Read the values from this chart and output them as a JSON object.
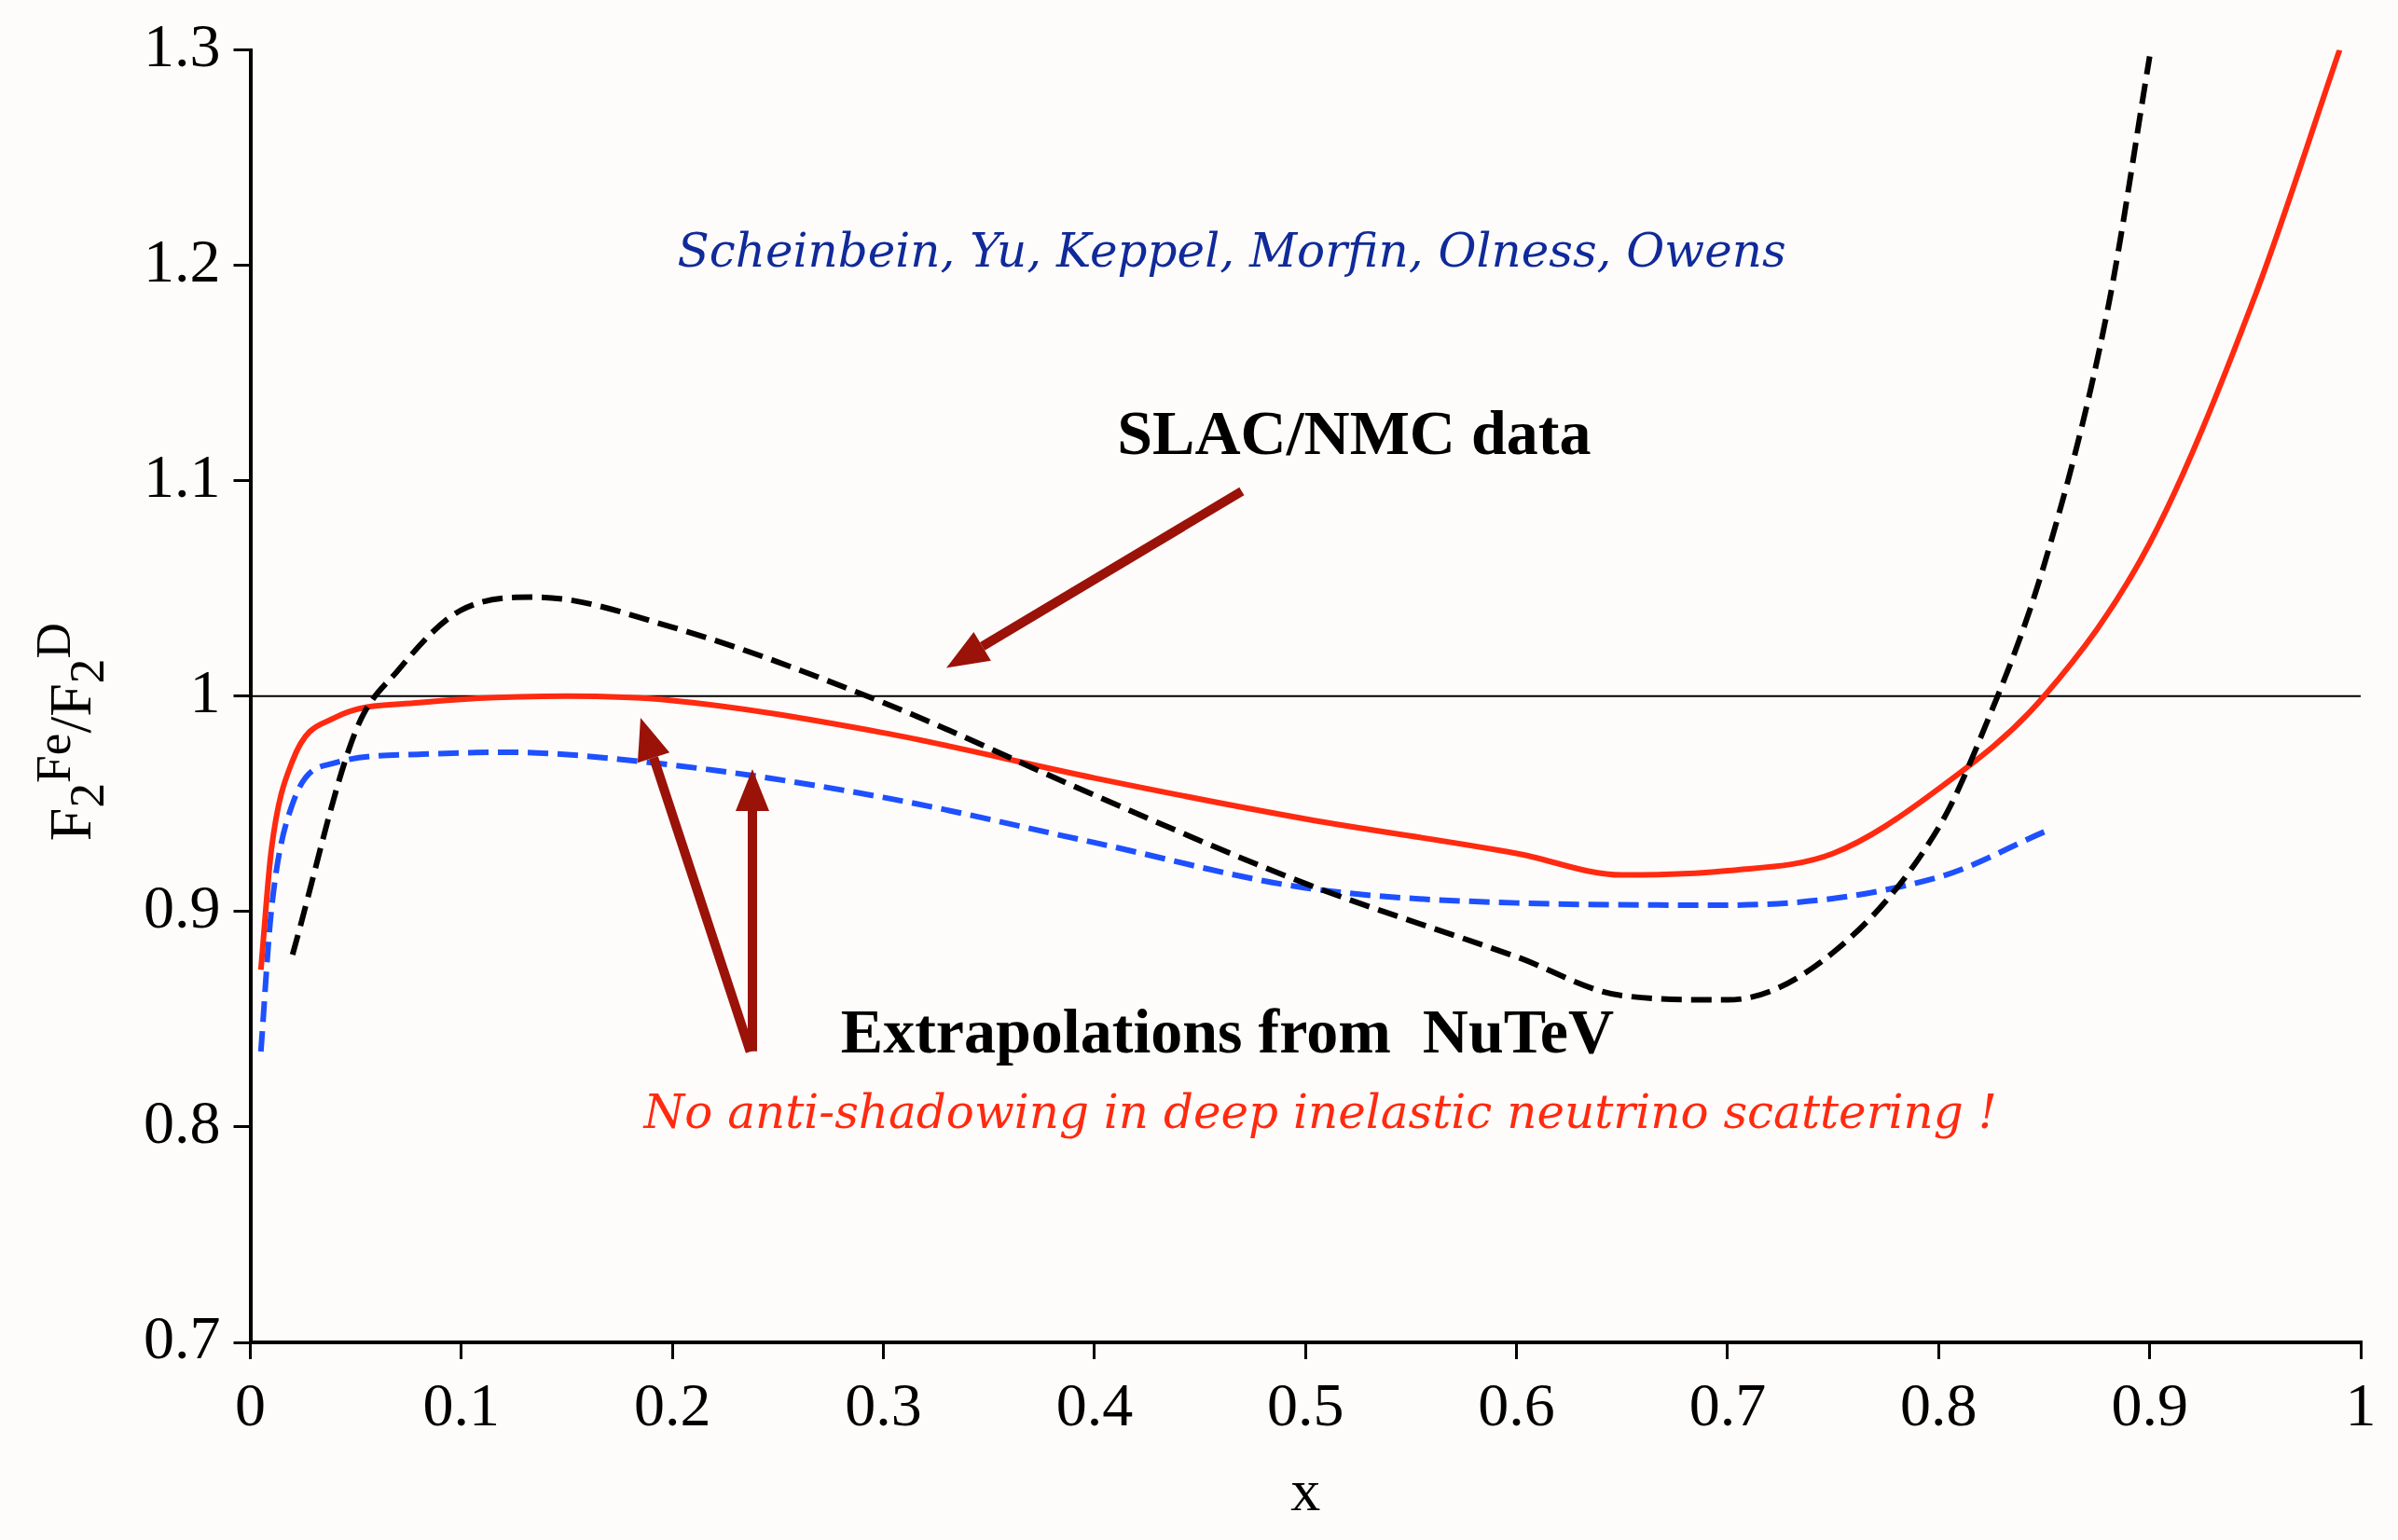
{
  "chart_data": {
    "type": "line",
    "xlabel": "x",
    "ylabel": "F$_{2}$$^{Fe}$/F$_{2}$$^{D}$",
    "xlim": [
      0,
      1
    ],
    "xticks": [
      0,
      0.1,
      0.2,
      0.3,
      0.4,
      0.5,
      0.6,
      0.7,
      0.8,
      0.9,
      1
    ],
    "ylim": [
      0.7,
      1.3
    ],
    "yticks": [
      0.7,
      0.8,
      0.9,
      1,
      1.1,
      1.2,
      1.3
    ],
    "grid": false,
    "legend": false,
    "marker": "none",
    "ref_lines": [
      {
        "axis": "y",
        "value": 1,
        "color": "#000000",
        "line_style": "solid"
      }
    ],
    "series": [
      {
        "color": "#000000",
        "line_style": "dashed",
        "x": [
          0.02,
          0.05,
          0.07,
          0.1,
          0.135,
          0.2,
          0.3,
          0.4,
          0.5,
          0.6,
          0.65,
          0.7,
          0.75,
          0.8,
          0.82,
          0.85,
          0.88,
          0.9
        ],
        "values": [
          0.88,
          0.984,
          1.012,
          1.04,
          1.046,
          1.032,
          0.997,
          0.954,
          0.913,
          0.879,
          0.861,
          0.859,
          0.881,
          0.939,
          0.981,
          1.061,
          1.179,
          1.297
        ]
      },
      {
        "color": "#ff2a10",
        "line_style": "solid",
        "x": [
          0.005,
          0.01,
          0.02,
          0.04,
          0.08,
          0.15,
          0.2,
          0.3,
          0.4,
          0.5,
          0.6,
          0.65,
          0.7,
          0.75,
          0.8,
          0.85,
          0.9,
          0.95,
          0.99
        ],
        "values": [
          0.873,
          0.929,
          0.97,
          0.99,
          0.997,
          1.0,
          0.998,
          0.983,
          0.962,
          0.943,
          0.927,
          0.917,
          0.919,
          0.927,
          0.957,
          1.0,
          1.071,
          1.186,
          1.3
        ]
      },
      {
        "color": "#1e50ff",
        "line_style": "dashed",
        "x": [
          0.005,
          0.01,
          0.02,
          0.04,
          0.08,
          0.12,
          0.2,
          0.3,
          0.4,
          0.5,
          0.6,
          0.7,
          0.8,
          0.85
        ],
        "values": [
          0.835,
          0.901,
          0.95,
          0.969,
          0.973,
          0.974,
          0.968,
          0.953,
          0.932,
          0.911,
          0.904,
          0.903,
          0.916,
          0.937
        ]
      }
    ],
    "annotations": [
      "Scheinbein, Yu, Keppel, Morfin, Olness, Owens",
      "SLAC/NMC data",
      "Extrapolations from  NuTeV",
      "No anti-shadowing in deep inelastic neutrino scattering !"
    ]
  }
}
